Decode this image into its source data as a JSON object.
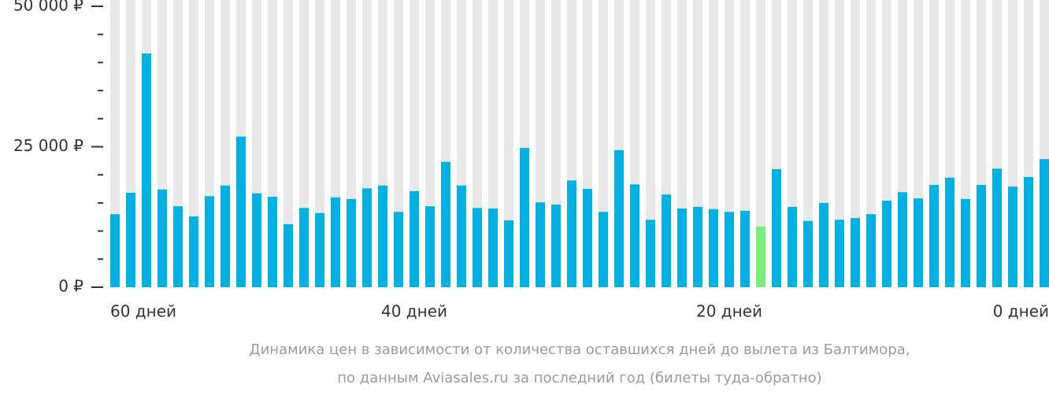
{
  "chart_data": {
    "type": "bar",
    "categories": [
      "60 дней",
      null,
      null,
      null,
      null,
      null,
      null,
      null,
      null,
      null,
      null,
      null,
      null,
      null,
      null,
      null,
      null,
      null,
      null,
      "40 дней",
      null,
      null,
      null,
      null,
      null,
      null,
      null,
      null,
      null,
      null,
      null,
      null,
      null,
      null,
      null,
      null,
      null,
      null,
      null,
      "20 дней",
      null,
      null,
      null,
      null,
      null,
      null,
      null,
      null,
      null,
      null,
      null,
      null,
      null,
      null,
      null,
      null,
      null,
      null,
      null,
      "0 дней"
    ],
    "values": [
      13000,
      16800,
      41600,
      17400,
      14400,
      12600,
      16200,
      18100,
      26800,
      16700,
      16100,
      11200,
      14100,
      13200,
      16000,
      15700,
      17600,
      18100,
      13400,
      17100,
      14400,
      22300,
      18100,
      14100,
      14000,
      11900,
      24800,
      15100,
      14700,
      19000,
      17500,
      13400,
      24400,
      18300,
      12000,
      16500,
      14000,
      14300,
      13900,
      13400,
      13600,
      10800,
      21000,
      14300,
      11800,
      15000,
      12000,
      12300,
      13000,
      15400,
      16900,
      15800,
      18200,
      19500,
      15700,
      18200,
      21100,
      17900,
      19600,
      22800
    ],
    "colors": [
      "#00b1e1",
      "#00b1e1",
      "#00b1e1",
      "#00b1e1",
      "#00b1e1",
      "#00b1e1",
      "#00b1e1",
      "#00b1e1",
      "#00b1e1",
      "#00b1e1",
      "#00b1e1",
      "#00b1e1",
      "#00b1e1",
      "#00b1e1",
      "#00b1e1",
      "#00b1e1",
      "#00b1e1",
      "#00b1e1",
      "#00b1e1",
      "#00b1e1",
      "#00b1e1",
      "#00b1e1",
      "#00b1e1",
      "#00b1e1",
      "#00b1e1",
      "#00b1e1",
      "#00b1e1",
      "#00b1e1",
      "#00b1e1",
      "#00b1e1",
      "#00b1e1",
      "#00b1e1",
      "#00b1e1",
      "#00b1e1",
      "#00b1e1",
      "#00b1e1",
      "#00b1e1",
      "#00b1e1",
      "#00b1e1",
      "#00b1e1",
      "#00b1e1",
      "#7aee7a",
      "#00b1e1",
      "#00b1e1",
      "#00b1e1",
      "#00b1e1",
      "#00b1e1",
      "#00b1e1",
      "#00b1e1",
      "#00b1e1",
      "#00b1e1",
      "#00b1e1",
      "#00b1e1",
      "#00b1e1",
      "#00b1e1",
      "#00b1e1",
      "#00b1e1",
      "#00b1e1",
      "#00b1e1",
      "#00b1e1"
    ],
    "background_color": "#e8e8e8",
    "ylim": [
      0,
      50000
    ],
    "yticks": [
      {
        "value": 0,
        "label": "0 ₽"
      },
      {
        "value": 25000,
        "label": "25 000 ₽"
      },
      {
        "value": 50000,
        "label": "50 000 ₽"
      }
    ],
    "minor_yticks": [
      5000,
      10000,
      15000,
      20000,
      30000,
      35000,
      40000,
      45000
    ],
    "caption": [
      "Динамика цен в зависимости от количества оставшихся дней до вылета из Балтимора,",
      "по данным Aviasales.ru за последний год (билеты туда-обратно)"
    ]
  }
}
